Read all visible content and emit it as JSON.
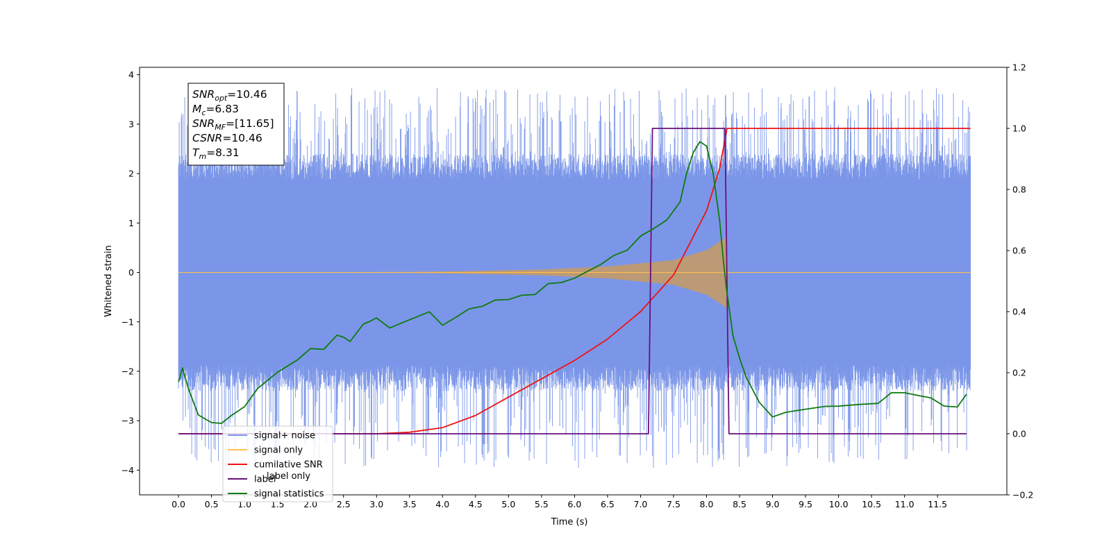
{
  "chart_data": {
    "type": "line",
    "xlabel": "Time (s)",
    "ylabel": "Whitened strain",
    "x_ticks": [
      "0.0",
      "0.5",
      "1.0",
      "1.5",
      "2.0",
      "2.5",
      "3.0",
      "3.5",
      "4.0",
      "4.5",
      "5.0",
      "5.5",
      "6.0",
      "6.5",
      "7.0",
      "7.5",
      "8.0",
      "8.5",
      "9.0",
      "9.5",
      "10.0",
      "10.5",
      "11.0",
      "11.5"
    ],
    "y_left_ticks": [
      "−4",
      "−3",
      "−2",
      "−1",
      "0",
      "1",
      "2",
      "3",
      "4"
    ],
    "y_right_ticks": [
      "−0.2",
      "0.0",
      "0.2",
      "0.4",
      "0.6",
      "0.8",
      "1.0",
      "1.2"
    ],
    "xlim": [
      -0.59,
      12.55
    ],
    "ylim_left": [
      -4.5,
      4.15
    ],
    "ylim_right": [
      -0.2,
      1.2
    ],
    "annotation": [
      {
        "base": "SNR",
        "sub": "opt",
        "rest": "=10.46"
      },
      {
        "base": "M",
        "sub": "c",
        "rest": "=6.83"
      },
      {
        "base": "SNR",
        "sub": "MF",
        "rest": "=[11.65]"
      },
      {
        "base": "CSNR",
        "sub": "",
        "rest": "=10.46"
      },
      {
        "base": "T",
        "sub": "m",
        "rest": "=8.31"
      }
    ],
    "legend": {
      "position": "lower-left",
      "entries": [
        {
          "label": "signal+ noise",
          "color": "#7b96e8"
        },
        {
          "label": "signal only",
          "color": "#ffc04d"
        },
        {
          "label": "cumilative SNR",
          "color": "#ee1111"
        },
        {
          "label": "label",
          "color": "#6a0f7a"
        },
        {
          "label": "signal statistics",
          "color": "#0f7a0f"
        }
      ],
      "hidden_text": "label only"
    },
    "series": [
      {
        "name": "signal+ noise",
        "axis": "left",
        "kind": "noise-band",
        "x_range": [
          0.0,
          12.0
        ],
        "envelope_upper": 2.4,
        "envelope_lower": -2.4,
        "spike_max": 3.75,
        "spike_min": -3.95,
        "color": "#7b96e8"
      },
      {
        "name": "signal only",
        "axis": "left",
        "kind": "chirp-envelope",
        "envelope": [
          [
            0.0,
            0.0
          ],
          [
            2.0,
            0.005
          ],
          [
            3.5,
            0.01
          ],
          [
            4.5,
            0.03
          ],
          [
            5.5,
            0.06
          ],
          [
            6.5,
            0.12
          ],
          [
            7.5,
            0.25
          ],
          [
            8.0,
            0.45
          ],
          [
            8.31,
            0.72
          ],
          [
            8.33,
            0.0
          ],
          [
            12.0,
            0.0
          ]
        ],
        "color": "#ffc04d",
        "fill_color": "#c09a70"
      },
      {
        "name": "cumilative SNR",
        "axis": "right",
        "x": [
          0.0,
          3.0,
          3.5,
          4.0,
          4.5,
          5.0,
          5.5,
          6.0,
          6.5,
          7.0,
          7.5,
          8.0,
          8.2,
          8.31,
          12.0
        ],
        "y": [
          0.0,
          0.0,
          0.005,
          0.02,
          0.06,
          0.12,
          0.18,
          0.24,
          0.31,
          0.4,
          0.52,
          0.73,
          0.87,
          1.0,
          1.0
        ],
        "color": "#ee1111"
      },
      {
        "name": "label",
        "axis": "right",
        "x": [
          0.0,
          7.12,
          7.18,
          8.28,
          8.34,
          11.94
        ],
        "y": [
          0.0,
          0.0,
          1.0,
          1.0,
          0.0,
          0.0
        ],
        "color": "#6a0f7a"
      },
      {
        "name": "signal statistics",
        "axis": "right",
        "x": [
          0.0,
          0.06,
          0.15,
          0.3,
          0.5,
          0.65,
          0.8,
          1.0,
          1.2,
          1.5,
          1.8,
          2.0,
          2.2,
          2.4,
          2.5,
          2.6,
          2.8,
          2.9,
          3.0,
          3.2,
          3.4,
          3.6,
          3.8,
          4.0,
          4.2,
          4.4,
          4.6,
          4.8,
          5.0,
          5.2,
          5.4,
          5.6,
          5.8,
          6.0,
          6.2,
          6.4,
          6.6,
          6.8,
          7.0,
          7.2,
          7.4,
          7.6,
          7.7,
          7.8,
          7.9,
          8.0,
          8.1,
          8.2,
          8.25,
          8.3,
          8.35,
          8.4,
          8.5,
          8.6,
          8.8,
          9.0,
          9.2,
          9.5,
          9.8,
          10.0,
          10.3,
          10.6,
          10.8,
          11.0,
          11.2,
          11.4,
          11.6,
          11.8,
          11.94
        ],
        "y": [
          0.17,
          0.21,
          0.15,
          0.06,
          0.04,
          0.04,
          0.06,
          0.09,
          0.15,
          0.2,
          0.24,
          0.28,
          0.28,
          0.32,
          0.32,
          0.3,
          0.36,
          0.37,
          0.38,
          0.35,
          0.36,
          0.38,
          0.4,
          0.35,
          0.38,
          0.41,
          0.42,
          0.44,
          0.44,
          0.45,
          0.45,
          0.49,
          0.5,
          0.51,
          0.53,
          0.55,
          0.58,
          0.6,
          0.65,
          0.67,
          0.7,
          0.76,
          0.85,
          0.92,
          0.96,
          0.94,
          0.85,
          0.7,
          0.58,
          0.48,
          0.4,
          0.32,
          0.25,
          0.18,
          0.1,
          0.06,
          0.07,
          0.08,
          0.09,
          0.09,
          0.09,
          0.1,
          0.14,
          0.13,
          0.13,
          0.12,
          0.09,
          0.09,
          0.13
        ],
        "color": "#0f7a0f"
      }
    ]
  }
}
